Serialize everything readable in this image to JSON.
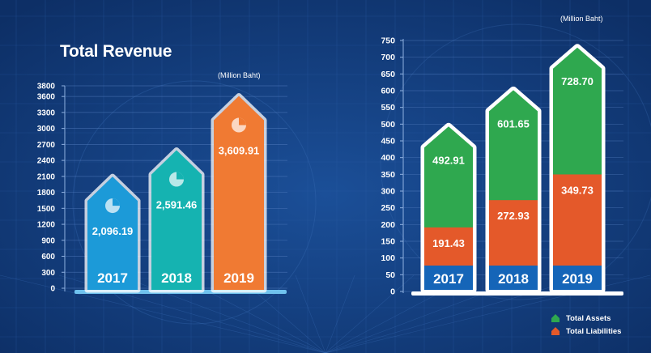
{
  "colors": {
    "background": "#123a78",
    "revenue_2017": "#1c9ad8",
    "revenue_2018": "#15b3b1",
    "revenue_2019": "#f07a33",
    "assets": "#2fa84f",
    "liabilities": "#e4592a",
    "year_band": "#1565b8"
  },
  "left": {
    "title": "Total Revenue",
    "unit": "(Million Baht)"
  },
  "right": {
    "unit": "(Million Baht)",
    "legend": [
      {
        "label": "Total Assets",
        "color": "#2fa84f"
      },
      {
        "label": "Total Liabilities",
        "color": "#e4592a"
      }
    ]
  },
  "chart_data": [
    {
      "type": "bar",
      "title": "Total Revenue",
      "unit": "(Million Baht)",
      "categories": [
        "2017",
        "2018",
        "2019"
      ],
      "values": [
        2096.19,
        2591.46,
        3609.91
      ],
      "value_labels": [
        "2,096.19",
        "2,591.46",
        "3,609.91"
      ],
      "yticks": [
        "0",
        "300",
        "600",
        "900",
        "1200",
        "1500",
        "1800",
        "2100",
        "2400",
        "2700",
        "3000",
        "3300",
        "3600",
        "3800"
      ],
      "ylim": [
        0,
        3800
      ]
    },
    {
      "type": "bar",
      "unit": "(Million Baht)",
      "categories": [
        "2017",
        "2018",
        "2019"
      ],
      "series": [
        {
          "name": "Total Assets",
          "values": [
            492.91,
            601.65,
            728.7
          ],
          "labels": [
            "492.91",
            "601.65",
            "728.70"
          ]
        },
        {
          "name": "Total Liabilities",
          "values": [
            191.43,
            272.93,
            349.73
          ],
          "labels": [
            "191.43",
            "272.93",
            "349.73"
          ]
        }
      ],
      "yticks": [
        "0",
        "50",
        "100",
        "150",
        "200",
        "250",
        "300",
        "350",
        "400",
        "450",
        "500",
        "550",
        "600",
        "650",
        "700",
        "750"
      ],
      "ylim": [
        0,
        750
      ]
    }
  ]
}
